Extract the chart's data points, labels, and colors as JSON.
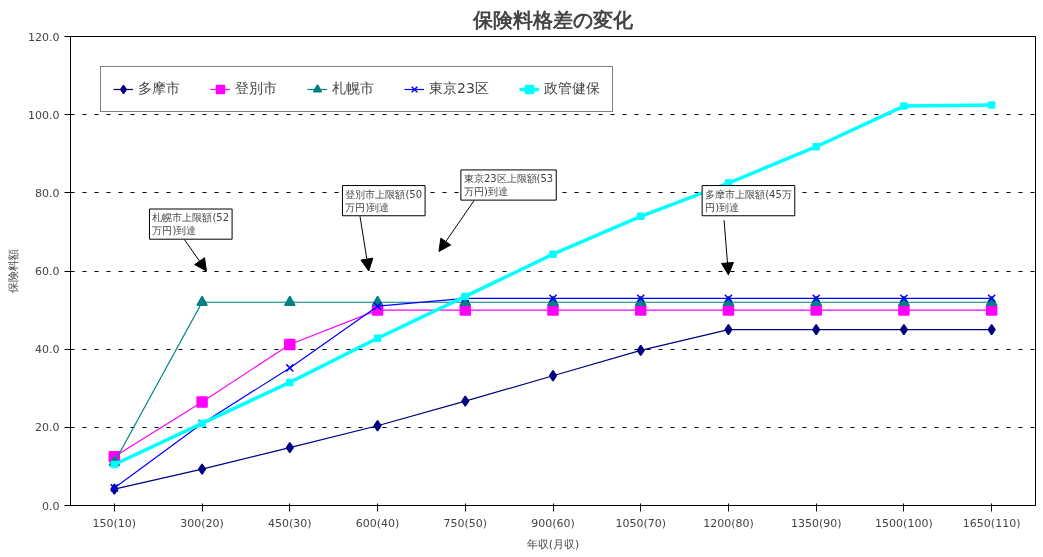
{
  "chart_data": {
    "type": "line",
    "title": "保険料格差の変化",
    "xlabel": "年収(月収)",
    "ylabel": "保険料額",
    "categories": [
      "150(10)",
      "300(20)",
      "450(30)",
      "600(40)",
      "750(50)",
      "900(60)",
      "1050(70)",
      "1200(80)",
      "1350(90)",
      "1500(100)",
      "1650(110)"
    ],
    "series": [
      {
        "name": "多摩市",
        "color": "#000080",
        "marker": "diamond",
        "values": [
          4.2,
          9.3,
          14.8,
          20.4,
          26.7,
          33.2,
          39.7,
          45,
          45,
          45,
          45
        ]
      },
      {
        "name": "登別市",
        "color": "#ff00ff",
        "marker": "square",
        "values": [
          12.5,
          26.5,
          41.2,
          50,
          50,
          50,
          50,
          50,
          50,
          50,
          50
        ]
      },
      {
        "name": "札幌市",
        "color": "#008080",
        "marker": "triangle",
        "values": [
          11,
          52,
          52,
          52,
          52,
          52,
          52,
          52,
          52,
          52,
          52
        ]
      },
      {
        "name": "東京23区",
        "color": "#0000ff",
        "marker": "cross",
        "values": [
          4.5,
          21,
          35.2,
          51,
          53,
          53,
          53,
          53,
          53,
          53,
          53
        ]
      },
      {
        "name": "政管健保",
        "color": "#00ffff",
        "marker": "square",
        "values": [
          10.5,
          21,
          31.5,
          42.8,
          53.5,
          64.3,
          74,
          82.5,
          91.8,
          102.2,
          102.5
        ]
      }
    ],
    "ylim": [
      0,
      120
    ],
    "yticks": [
      {
        "value": 0,
        "label": "0.0"
      },
      {
        "value": 20,
        "label": "20.0"
      },
      {
        "value": 40,
        "label": "40.0"
      },
      {
        "value": 60,
        "label": "60.0"
      },
      {
        "value": 80,
        "label": "80.0"
      },
      {
        "value": 100,
        "label": "100.0"
      },
      {
        "value": 120,
        "label": "120.0"
      }
    ],
    "grid": "y",
    "legend": "top left",
    "line_style": "solid",
    "annotations": [
      "札幌市上限額(52万円)到達",
      "登別市上限額(50万円)到達",
      "東京23区上限額(53万円)到達",
      "多摩市上限額(45万円)到達"
    ]
  }
}
